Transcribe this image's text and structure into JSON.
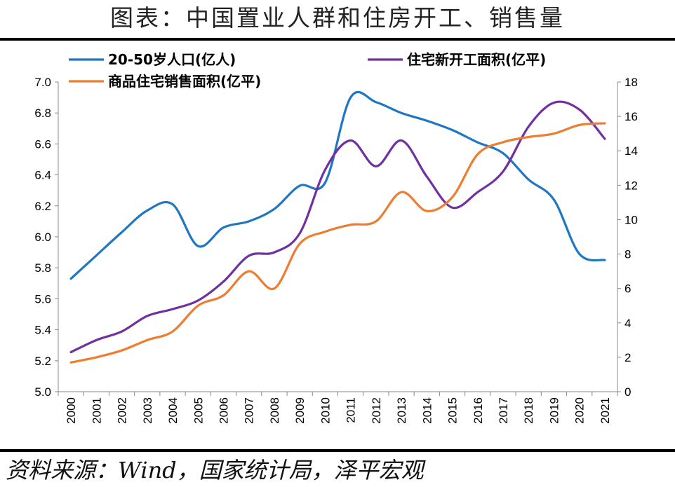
{
  "header": {
    "title": "图表：中国置业人群和住房开工、销售量"
  },
  "footer": {
    "source": "资料来源：Wind，国家统计局，泽平宏观"
  },
  "chart_data": {
    "type": "line",
    "title": "图表：中国置业人群和住房开工、销售量",
    "categories": [
      "2000",
      "2001",
      "2002",
      "2003",
      "2004",
      "2005",
      "2006",
      "2007",
      "2008",
      "2009",
      "2010",
      "2011",
      "2012",
      "2013",
      "2014",
      "2015",
      "2016",
      "2017",
      "2018",
      "2019",
      "2020",
      "2021"
    ],
    "y_left": {
      "min": 5.0,
      "max": 7.0,
      "step": 0.2,
      "ticks": [
        "5.0",
        "5.2",
        "5.4",
        "5.6",
        "5.8",
        "6.0",
        "6.2",
        "6.4",
        "6.6",
        "6.8",
        "7.0"
      ]
    },
    "y_right": {
      "min": 0,
      "max": 18,
      "step": 2,
      "ticks": [
        "0",
        "2",
        "4",
        "6",
        "8",
        "10",
        "12",
        "14",
        "16",
        "18"
      ]
    },
    "legend_position": "top",
    "series": [
      {
        "name": "20-50岁人口(亿人)",
        "axis": "left",
        "color": "#1f77c4",
        "values": [
          5.73,
          5.88,
          6.03,
          6.17,
          6.21,
          5.94,
          6.06,
          6.1,
          6.18,
          6.33,
          6.35,
          6.9,
          6.87,
          6.8,
          6.75,
          6.69,
          6.61,
          6.54,
          6.37,
          6.24,
          5.89,
          5.85
        ]
      },
      {
        "name": "住宅新开工面积(亿平)",
        "axis": "right",
        "color": "#7030a0",
        "values": [
          2.3,
          3.0,
          3.5,
          4.4,
          4.8,
          5.3,
          6.4,
          7.9,
          8.1,
          9.2,
          12.9,
          14.6,
          13.1,
          14.6,
          12.5,
          10.7,
          11.6,
          12.8,
          15.4,
          16.8,
          16.4,
          14.7
        ]
      },
      {
        "name": "商品住宅销售面积(亿平)",
        "axis": "right",
        "color": "#ed7d31",
        "values": [
          1.7,
          2.0,
          2.4,
          3.0,
          3.5,
          5.0,
          5.6,
          7.0,
          6.0,
          8.6,
          9.3,
          9.7,
          9.9,
          11.6,
          10.5,
          11.3,
          13.8,
          14.5,
          14.8,
          15.0,
          15.5,
          15.6
        ]
      }
    ]
  }
}
